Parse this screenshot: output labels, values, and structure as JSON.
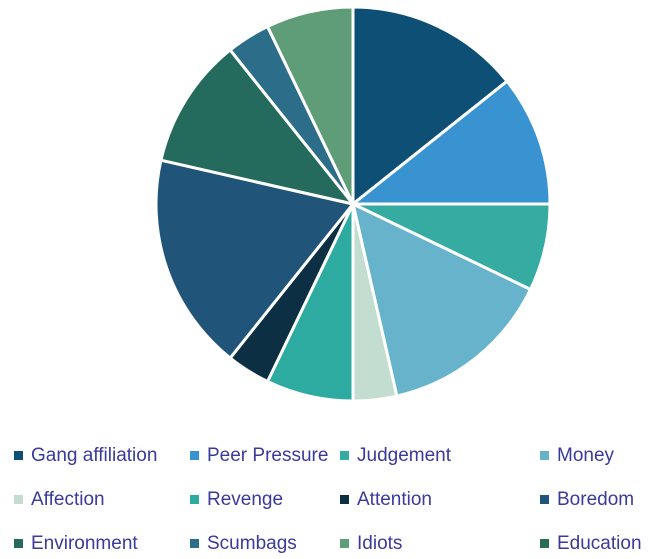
{
  "chart_data": {
    "type": "pie",
    "categories": [
      "Gang affiliation",
      "Peer Pressure",
      "Judgement",
      "Money",
      "Affection",
      "Revenge",
      "Attention",
      "Boredom",
      "Environment",
      "Scumbags",
      "Idiots",
      "Education"
    ],
    "values": [
      4,
      3,
      2,
      4,
      1,
      2,
      1,
      5,
      3,
      1,
      2,
      0
    ],
    "colors": [
      "#0d4f75",
      "#3a93d1",
      "#35aba1",
      "#67b3cc",
      "#c3ddd0",
      "#2eaba0",
      "#0c2f44",
      "#215479",
      "#246b5e",
      "#2c6e8a",
      "#5e9d77",
      "#2a6e57"
    ],
    "legend": "bottom"
  }
}
